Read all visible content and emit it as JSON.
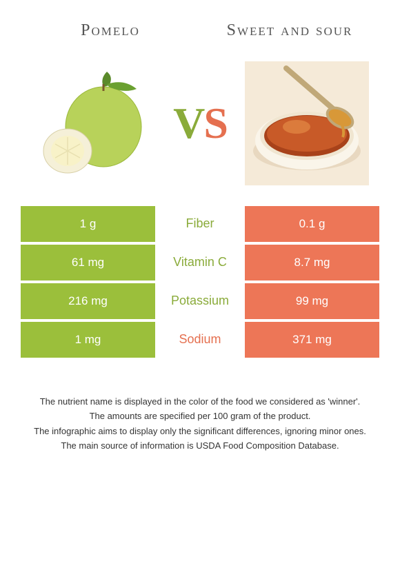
{
  "colors": {
    "left": "#9bbf3b",
    "right": "#ed7657",
    "mid_left": "#8aab3a",
    "mid_right": "#e57050"
  },
  "titles": {
    "left": "Pomelo",
    "right": "Sweet and sour"
  },
  "vs": {
    "v": "V",
    "s": "S"
  },
  "rows": [
    {
      "left": "1 g",
      "label": "Fiber",
      "right": "0.1 g",
      "winner": "left"
    },
    {
      "left": "61 mg",
      "label": "Vitamin C",
      "right": "8.7 mg",
      "winner": "left"
    },
    {
      "left": "216 mg",
      "label": "Potassium",
      "right": "99 mg",
      "winner": "left"
    },
    {
      "left": "1 mg",
      "label": "Sodium",
      "right": "371 mg",
      "winner": "right"
    }
  ],
  "footer": [
    "The nutrient name is displayed in the color of the food we considered as 'winner'.",
    "The amounts are specified per 100 gram of the product.",
    "The infographic aims to display only the significant differences, ignoring minor ones.",
    "The main source of information is USDA Food Composition Database."
  ]
}
